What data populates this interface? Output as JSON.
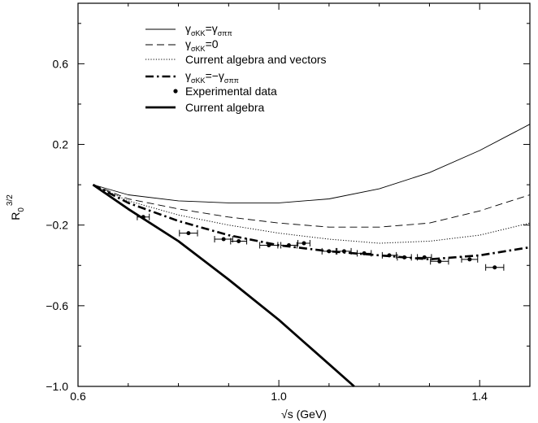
{
  "chart_data": {
    "type": "line",
    "xlabel_prefix": "√s",
    "xlabel": "√s (GeV)",
    "ylabel": "R",
    "ylabel_sub": "0",
    "ylabel_sup": "3/2",
    "xlim": [
      0.6,
      1.5
    ],
    "ylim": [
      -1.0,
      0.9
    ],
    "x_ticks": [
      {
        "value": 0.6,
        "label": "0.6"
      },
      {
        "value": 1.0,
        "label": "1.0"
      },
      {
        "value": 1.4,
        "label": "1.4"
      }
    ],
    "y_ticks": [
      {
        "value": -1.0,
        "label": "−1.0"
      },
      {
        "value": -0.6,
        "label": "−0.6"
      },
      {
        "value": -0.2,
        "label": "−0.2"
      },
      {
        "value": 0.2,
        "label": "0.2"
      },
      {
        "value": 0.6,
        "label": "0.6"
      }
    ],
    "grid": false,
    "legend_position": "top-left",
    "series": [
      {
        "name": "γσKK=γσππ",
        "legend_main": "γ",
        "legend_sub1": "σKK",
        "legend_eq": "=γ",
        "legend_sub2": "σππ",
        "style": "thin-solid",
        "x": [
          0.63,
          0.7,
          0.8,
          0.9,
          1.0,
          1.1,
          1.2,
          1.3,
          1.4,
          1.5
        ],
        "y": [
          0.0,
          -0.05,
          -0.08,
          -0.09,
          -0.09,
          -0.07,
          -0.02,
          0.06,
          0.17,
          0.3
        ]
      },
      {
        "name": "γσKK=0",
        "legend_main": "γ",
        "legend_sub1": "σKK",
        "legend_eq": "=0",
        "legend_sub2": "",
        "style": "dashed",
        "x": [
          0.63,
          0.7,
          0.8,
          0.9,
          1.0,
          1.1,
          1.2,
          1.3,
          1.4,
          1.5
        ],
        "y": [
          0.0,
          -0.07,
          -0.12,
          -0.16,
          -0.19,
          -0.21,
          -0.21,
          -0.19,
          -0.13,
          -0.05
        ]
      },
      {
        "name": "Current algebra and vectors",
        "style": "dotted",
        "x": [
          0.63,
          0.7,
          0.8,
          0.9,
          1.0,
          1.1,
          1.2,
          1.3,
          1.4,
          1.5
        ],
        "y": [
          0.0,
          -0.08,
          -0.15,
          -0.2,
          -0.24,
          -0.27,
          -0.29,
          -0.28,
          -0.25,
          -0.19
        ]
      },
      {
        "name": "γσKK=−γσππ",
        "legend_main": "γ",
        "legend_sub1": "σKK",
        "legend_eq": "=−γ",
        "legend_sub2": "σππ",
        "style": "dash-dot",
        "x": [
          0.63,
          0.7,
          0.8,
          0.9,
          1.0,
          1.1,
          1.2,
          1.3,
          1.4,
          1.5
        ],
        "y": [
          0.0,
          -0.09,
          -0.18,
          -0.25,
          -0.3,
          -0.33,
          -0.35,
          -0.37,
          -0.35,
          -0.31
        ]
      },
      {
        "name": "Current algebra",
        "style": "thick-solid",
        "x": [
          0.63,
          0.7,
          0.8,
          0.9,
          1.0,
          1.05,
          1.1,
          1.15
        ],
        "y": [
          0.0,
          -0.12,
          -0.28,
          -0.47,
          -0.67,
          -0.78,
          -0.89,
          -1.0
        ]
      }
    ],
    "experimental_data": {
      "name": "Experimental data",
      "points": [
        {
          "x": 0.73,
          "y": -0.16,
          "xerr": 0.012
        },
        {
          "x": 0.82,
          "y": -0.24,
          "xerr": 0.018
        },
        {
          "x": 0.89,
          "y": -0.27,
          "xerr": 0.018
        },
        {
          "x": 0.92,
          "y": -0.28,
          "xerr": 0.016
        },
        {
          "x": 0.98,
          "y": -0.3,
          "xerr": 0.018
        },
        {
          "x": 1.02,
          "y": -0.3,
          "xerr": 0.016
        },
        {
          "x": 1.05,
          "y": -0.29,
          "xerr": 0.012
        },
        {
          "x": 1.1,
          "y": -0.33,
          "xerr": 0.014
        },
        {
          "x": 1.13,
          "y": -0.33,
          "xerr": 0.014
        },
        {
          "x": 1.17,
          "y": -0.34,
          "xerr": 0.014
        },
        {
          "x": 1.22,
          "y": -0.35,
          "xerr": 0.014
        },
        {
          "x": 1.25,
          "y": -0.36,
          "xerr": 0.014
        },
        {
          "x": 1.29,
          "y": -0.36,
          "xerr": 0.014
        },
        {
          "x": 1.32,
          "y": -0.38,
          "xerr": 0.018
        },
        {
          "x": 1.38,
          "y": -0.37,
          "xerr": 0.016
        },
        {
          "x": 1.43,
          "y": -0.41,
          "xerr": 0.018
        }
      ]
    }
  }
}
